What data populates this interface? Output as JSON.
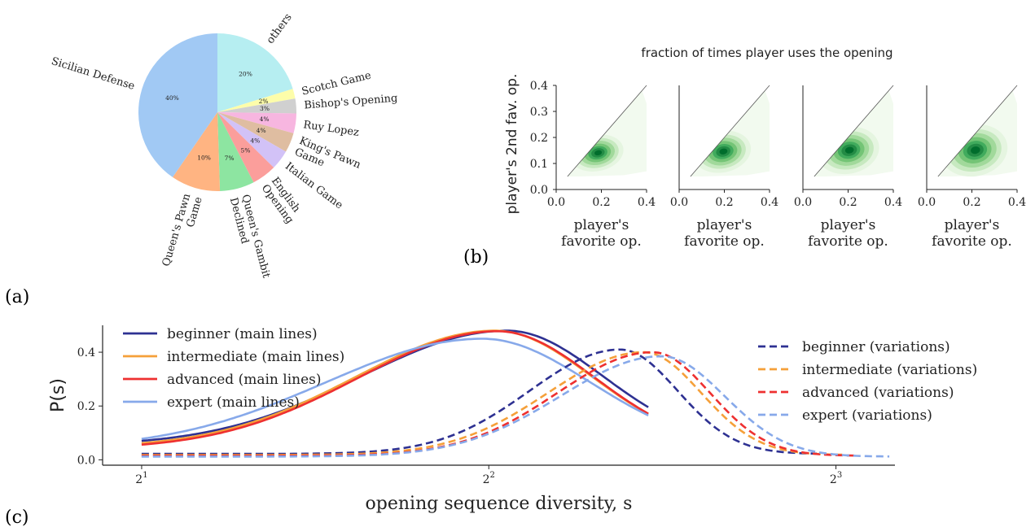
{
  "panel_labels": {
    "a": "(a)",
    "b": "(b)",
    "c": "(c)"
  },
  "chart_data": [
    {
      "panel": "a",
      "type": "pie",
      "start_angle_deg": 90,
      "direction": "clockwise",
      "slices": [
        {
          "label": "others",
          "value": 20,
          "pct_label": "20%",
          "color": "#b6eef1"
        },
        {
          "label": "Scotch Game",
          "value": 2,
          "pct_label": "2%",
          "color": "#fdfdaa"
        },
        {
          "label": "Bishop's Opening",
          "value": 3,
          "pct_label": "3%",
          "color": "#d0d0d0"
        },
        {
          "label": "Ruy Lopez",
          "value": 4,
          "pct_label": "4%",
          "color": "#f7b6e0"
        },
        {
          "label": "King's Pawn Game",
          "value": 4,
          "pct_label": "4%",
          "color": "#dfbda1"
        },
        {
          "label": "Italian Game",
          "value": 4,
          "pct_label": "4%",
          "color": "#d2c2f7"
        },
        {
          "label": "English Opening",
          "value": 5,
          "pct_label": "5%",
          "color": "#fb9e9b"
        },
        {
          "label": "Queen's Gambit Declined",
          "value": 7,
          "pct_label": "7%",
          "color": "#8de5a1"
        },
        {
          "label": "Queen's Pawn Game",
          "value": 10,
          "pct_label": "10%",
          "color": "#ffb482"
        },
        {
          "label": "Sicilian Defense",
          "value": 40,
          "pct_label": "40%",
          "color": "#a1c9f4"
        }
      ]
    },
    {
      "panel": "b",
      "type": "heatmap",
      "kind": "2D density (kde) small multiples",
      "title": "fraction of times player uses the opening",
      "xlabel": "player's favorite op.",
      "ylabel": "player's 2nd fav. op.",
      "xlim": [
        0.0,
        0.4
      ],
      "ylim": [
        0.0,
        0.4
      ],
      "xticks": [
        "0.0",
        "0.2",
        "0.4"
      ],
      "yticks": [
        "0.0",
        "0.1",
        "0.2",
        "0.3",
        "0.4"
      ],
      "reference_line": "y = x",
      "colormap": "Greens",
      "subplots": [
        {
          "center": [
            0.18,
            0.14
          ],
          "spread": [
            0.06,
            0.035
          ]
        },
        {
          "center": [
            0.19,
            0.145
          ],
          "spread": [
            0.065,
            0.04
          ]
        },
        {
          "center": [
            0.2,
            0.15
          ],
          "spread": [
            0.07,
            0.045
          ]
        },
        {
          "center": [
            0.21,
            0.15
          ],
          "spread": [
            0.075,
            0.05
          ]
        }
      ]
    },
    {
      "panel": "c",
      "type": "line",
      "xlabel": "opening sequence diversity, s",
      "ylabel": "P(s)",
      "xscale": "log2",
      "xlim": [
        1.85,
        9.0
      ],
      "ylim": [
        -0.02,
        0.5
      ],
      "xticks": [
        {
          "value": 2,
          "base": "2",
          "exp": "1"
        },
        {
          "value": 4,
          "base": "2",
          "exp": "2"
        },
        {
          "value": 8,
          "base": "2",
          "exp": "3"
        }
      ],
      "yticks": [
        "0.0",
        "0.2",
        "0.4"
      ],
      "series": [
        {
          "name": "beginner (main lines)",
          "color": "#2e3192",
          "style": "solid",
          "xrange": [
            2.0,
            5.5
          ],
          "mode": 4.15,
          "peak": 0.48,
          "sigma_left": 0.42,
          "sigma_right": 0.275,
          "base": 0.052
        },
        {
          "name": "intermediate (main lines)",
          "color": "#f5a03a",
          "style": "solid",
          "xrange": [
            2.0,
            5.5
          ],
          "mode": 4.05,
          "peak": 0.48,
          "sigma_left": 0.4,
          "sigma_right": 0.28,
          "base": 0.045
        },
        {
          "name": "advanced (main lines)",
          "color": "#ee3030",
          "style": "solid",
          "xrange": [
            2.0,
            5.5
          ],
          "mode": 4.07,
          "peak": 0.478,
          "sigma_left": 0.4,
          "sigma_right": 0.28,
          "base": 0.04
        },
        {
          "name": "expert (main lines)",
          "color": "#87a9ea",
          "style": "solid",
          "xrange": [
            2.0,
            5.5
          ],
          "mode": 3.95,
          "peak": 0.45,
          "sigma_left": 0.45,
          "sigma_right": 0.31,
          "base": 0.04
        },
        {
          "name": "beginner (variations)",
          "color": "#2e3192",
          "style": "dashed",
          "xrange": [
            2.0,
            7.7
          ],
          "mode": 5.2,
          "peak": 0.41,
          "sigma_left": 0.26,
          "sigma_right": 0.165,
          "base": 0.022
        },
        {
          "name": "intermediate (variations)",
          "color": "#f5a03a",
          "style": "dashed",
          "xrange": [
            2.0,
            8.1
          ],
          "mode": 5.45,
          "peak": 0.4,
          "sigma_left": 0.275,
          "sigma_right": 0.165,
          "base": 0.018
        },
        {
          "name": "advanced (variations)",
          "color": "#ee3030",
          "style": "dashed",
          "xrange": [
            2.0,
            8.3
          ],
          "mode": 5.55,
          "peak": 0.4,
          "sigma_left": 0.275,
          "sigma_right": 0.165,
          "base": 0.015
        },
        {
          "name": "expert (variations)",
          "color": "#87a9ea",
          "style": "dashed",
          "xrange": [
            2.0,
            8.9
          ],
          "mode": 5.65,
          "peak": 0.385,
          "sigma_left": 0.29,
          "sigma_right": 0.18,
          "base": 0.012
        }
      ]
    }
  ]
}
